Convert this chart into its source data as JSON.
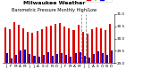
{
  "title": "Milwaukee Weather",
  "subtitle": "Barometric Pressure Monthly High/Low",
  "highs": [
    30.45,
    30.38,
    30.65,
    30.55,
    30.4,
    30.28,
    30.25,
    30.3,
    30.38,
    30.48,
    30.52,
    30.58,
    30.62,
    30.5,
    30.42,
    30.35,
    30.55,
    30.28,
    30.2,
    30.38,
    30.45,
    30.4,
    30.35,
    30.6
  ],
  "lows": [
    29.4,
    29.2,
    29.35,
    29.5,
    29.55,
    29.38,
    29.3,
    29.25,
    29.35,
    29.45,
    29.3,
    29.38,
    29.42,
    29.35,
    29.25,
    29.4,
    29.45,
    29.3,
    29.22,
    29.38,
    29.48,
    29.42,
    29.35,
    29.5
  ],
  "high_color": "#dd0000",
  "low_color": "#0000cc",
  "bg_color": "#ffffff",
  "ylim_min": 29.0,
  "ylim_max": 31.0,
  "yticks": [
    29.0,
    29.5,
    30.0,
    30.5,
    31.0
  ],
  "ytick_labels": [
    "29.0",
    "29.5",
    "30.0",
    "30.5",
    "31.0"
  ],
  "bar_width": 0.4,
  "n_bars": 24,
  "x_labels": [
    "J",
    "F",
    "M",
    "A",
    "M",
    "J",
    "J",
    "A",
    "S",
    "O",
    "N",
    "D",
    "J",
    "F",
    "M",
    "A",
    "M",
    "J",
    "J",
    "A",
    "S",
    "O",
    "N",
    "D"
  ],
  "dashed_lines": [
    16.5,
    17.5
  ],
  "legend_high": "High",
  "legend_low": "Low",
  "title_fontsize": 4.5,
  "tick_fontsize": 3.0
}
